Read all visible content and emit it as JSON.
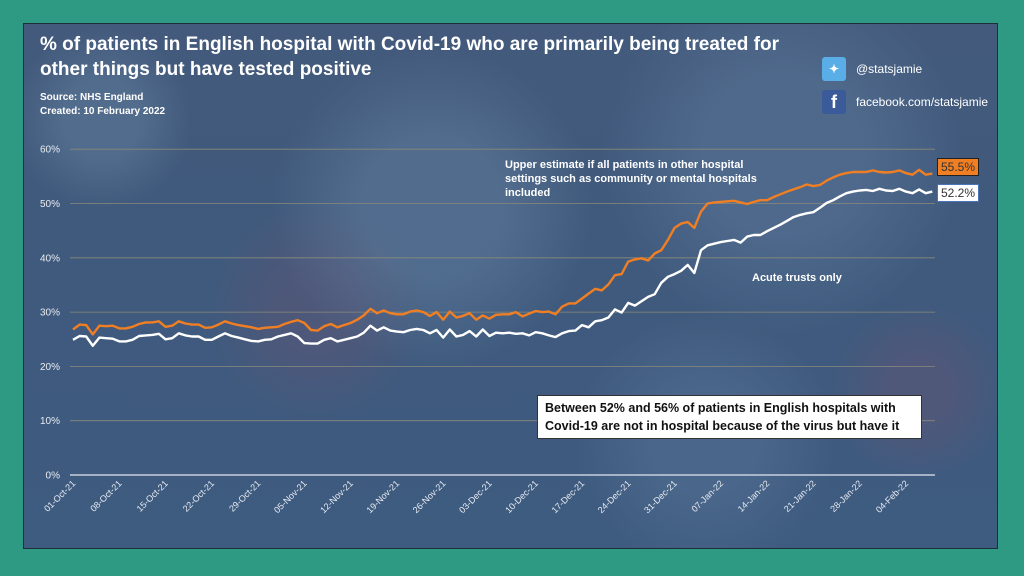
{
  "header": {
    "title": "% of patients in English hospital with Covid-19 who are primarily being treated for other things but have tested positive",
    "source": "Source: NHS England",
    "created": "Created: 10 February 2022"
  },
  "social": {
    "twitter": {
      "icon": "twitter-icon",
      "handle": "@statsjamie",
      "color": "#5aaee8"
    },
    "facebook": {
      "icon": "facebook-icon",
      "handle": "facebook.com/statsjamie",
      "color": "#3b5a9a"
    }
  },
  "annotations": {
    "upper_line1": "Upper estimate if all patients in other hospital",
    "upper_line2": "settings such as community or mental hospitals",
    "upper_line3": "included",
    "acute": "Acute trusts only",
    "callout": "Between 52% and 56% of patients in English hospitals with Covid-19 are not in hospital because of the virus but have it"
  },
  "chart_data": {
    "type": "line",
    "title": "% of patients in English hospital with Covid-19 who are primarily being treated for other things but have tested positive",
    "xlabel": "",
    "ylabel": "",
    "ylim": [
      0,
      60
    ],
    "yticks": [
      "0%",
      "10%",
      "20%",
      "30%",
      "40%",
      "50%",
      "60%"
    ],
    "xticks": [
      "01-Oct-21",
      "08-Oct-21",
      "15-Oct-21",
      "22-Oct-21",
      "29-Oct-21",
      "05-Nov-21",
      "12-Nov-21",
      "19-Nov-21",
      "26-Nov-21",
      "03-Dec-21",
      "10-Dec-21",
      "17-Dec-21",
      "24-Dec-21",
      "31-Dec-21",
      "07-Jan-22",
      "14-Jan-22",
      "21-Jan-22",
      "28-Jan-22",
      "04-Feb-22"
    ],
    "x_start": "01-Oct-21",
    "x_step_days": 1,
    "grid": true,
    "series": [
      {
        "name": "Upper estimate (all hospital settings)",
        "color": "#f07f24",
        "end_label": "55.5%",
        "values": [
          26.8,
          27.7,
          27.6,
          25.9,
          27.5,
          27.4,
          27.5,
          27.0,
          27.0,
          27.3,
          27.8,
          28.1,
          28.1,
          28.3,
          27.3,
          27.5,
          28.3,
          27.9,
          27.7,
          27.7,
          27.1,
          27.2,
          27.7,
          28.3,
          27.9,
          27.6,
          27.4,
          27.2,
          26.9,
          27.1,
          27.2,
          27.3,
          27.8,
          28.2,
          28.5,
          28.0,
          26.7,
          26.6,
          27.4,
          27.8,
          27.2,
          27.6,
          28.0,
          28.6,
          29.4,
          30.6,
          29.8,
          30.3,
          29.8,
          29.6,
          29.6,
          30.1,
          30.3,
          30.0,
          29.3,
          30.0,
          28.6,
          30.1,
          29.0,
          29.3,
          29.8,
          28.6,
          29.4,
          28.8,
          29.5,
          29.6,
          29.6,
          30.0,
          29.2,
          29.7,
          30.2,
          30.0,
          30.1,
          29.6,
          31.0,
          31.6,
          31.6,
          32.5,
          33.4,
          34.3,
          34.0,
          35.1,
          36.8,
          37.0,
          39.3,
          39.7,
          39.9,
          39.5,
          40.8,
          41.4,
          43.3,
          45.5,
          46.3,
          46.6,
          45.5,
          48.5,
          50.0,
          50.2,
          50.3,
          50.4,
          50.5,
          50.2,
          49.9,
          50.3,
          50.6,
          50.6,
          51.2,
          51.7,
          52.2,
          52.6,
          53.0,
          53.5,
          53.2,
          53.4,
          54.2,
          54.8,
          55.3,
          55.6,
          55.8,
          55.8,
          55.8,
          56.1,
          55.8,
          55.7,
          55.8,
          56.1,
          55.6,
          55.3,
          56.2,
          55.3,
          55.5
        ]
      },
      {
        "name": "Acute trusts only",
        "color": "#ffffff",
        "end_label": "52.2%",
        "values": [
          24.9,
          25.6,
          25.5,
          23.8,
          25.3,
          25.2,
          25.1,
          24.6,
          24.6,
          24.9,
          25.6,
          25.7,
          25.8,
          26.0,
          25.0,
          25.2,
          26.1,
          25.7,
          25.5,
          25.5,
          24.9,
          24.9,
          25.5,
          26.1,
          25.6,
          25.3,
          25.0,
          24.7,
          24.6,
          24.9,
          25.0,
          25.5,
          25.8,
          26.1,
          25.5,
          24.3,
          24.2,
          24.2,
          24.9,
          25.2,
          24.6,
          24.9,
          25.2,
          25.5,
          26.2,
          27.5,
          26.6,
          27.2,
          26.6,
          26.4,
          26.3,
          26.7,
          26.9,
          26.7,
          26.1,
          26.7,
          25.3,
          26.8,
          25.5,
          25.8,
          26.5,
          25.5,
          26.8,
          25.6,
          26.2,
          26.1,
          26.2,
          26.0,
          26.1,
          25.7,
          26.3,
          26.1,
          25.7,
          25.4,
          26.1,
          26.5,
          26.6,
          27.6,
          27.2,
          28.3,
          28.5,
          29.0,
          30.5,
          29.9,
          31.7,
          31.2,
          32.0,
          32.8,
          33.3,
          35.4,
          36.5,
          37.0,
          37.6,
          38.7,
          37.2,
          41.4,
          42.3,
          42.6,
          42.9,
          43.1,
          43.3,
          42.8,
          43.9,
          44.2,
          44.2,
          44.9,
          45.5,
          46.1,
          46.8,
          47.5,
          47.9,
          48.2,
          48.4,
          49.2,
          50.1,
          50.6,
          51.3,
          51.9,
          52.2,
          52.4,
          52.5,
          52.3,
          52.7,
          52.4,
          52.3,
          52.7,
          52.2,
          51.9,
          52.6,
          51.9,
          52.2
        ]
      }
    ]
  }
}
